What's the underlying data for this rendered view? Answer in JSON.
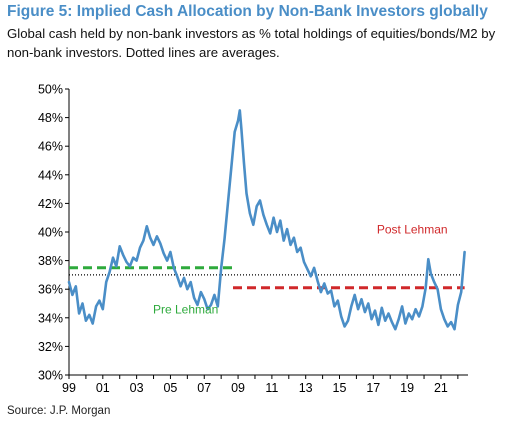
{
  "title": "Figure 5: Implied Cash Allocation by Non-Bank Investors globally",
  "subtitle": "Global cash held by non-bank investors as % total holdings of equities/bonds/M2 by non-bank investors. Dotted lines are averages.",
  "source": "Source: J.P. Morgan",
  "colors": {
    "series": "#4a8ec7",
    "pre_avg": "#2eaa3c",
    "post_avg": "#d0282a",
    "overall_avg": "#000000",
    "title": "#4a8ec7"
  },
  "chart_data": {
    "type": "line",
    "title": "Figure 5: Implied Cash Allocation by Non-Bank Investors globally",
    "xlabel": "",
    "ylabel": "",
    "xlim": [
      1999.0,
      2022.6
    ],
    "ylim": [
      30,
      50
    ],
    "y_ticks": [
      "30%",
      "32%",
      "34%",
      "36%",
      "38%",
      "40%",
      "42%",
      "44%",
      "46%",
      "48%",
      "50%"
    ],
    "x_ticks": [
      "99",
      "01",
      "03",
      "05",
      "07",
      "09",
      "11",
      "13",
      "15",
      "17",
      "19",
      "21"
    ],
    "grid": false,
    "series": [
      {
        "x": [
          1999.0,
          1999.2,
          1999.4,
          1999.6,
          1999.8,
          2000.0,
          2000.2,
          2000.4,
          2000.6,
          2000.8,
          2001.0,
          2001.2,
          2001.4,
          2001.6,
          2001.8,
          2002.0,
          2002.2,
          2002.4,
          2002.6,
          2002.8,
          2003.0,
          2003.2,
          2003.4,
          2003.6,
          2003.8,
          2004.0,
          2004.2,
          2004.4,
          2004.6,
          2004.8,
          2005.0,
          2005.2,
          2005.4,
          2005.6,
          2005.8,
          2006.0,
          2006.2,
          2006.4,
          2006.6,
          2006.8,
          2007.0,
          2007.2,
          2007.4,
          2007.6,
          2007.8,
          2008.0,
          2008.2,
          2008.4,
          2008.6,
          2008.8,
          2009.0,
          2009.1,
          2009.2,
          2009.35,
          2009.5,
          2009.7,
          2009.9,
          2010.1,
          2010.3,
          2010.5,
          2010.7,
          2010.9,
          2011.1,
          2011.3,
          2011.5,
          2011.7,
          2011.9,
          2012.1,
          2012.3,
          2012.5,
          2012.7,
          2012.9,
          2013.1,
          2013.3,
          2013.5,
          2013.7,
          2013.9,
          2014.1,
          2014.3,
          2014.5,
          2014.7,
          2014.9,
          2015.1,
          2015.3,
          2015.5,
          2015.7,
          2015.9,
          2016.1,
          2016.3,
          2016.5,
          2016.7,
          2016.9,
          2017.1,
          2017.3,
          2017.5,
          2017.7,
          2017.9,
          2018.1,
          2018.3,
          2018.5,
          2018.7,
          2018.9,
          2019.1,
          2019.3,
          2019.5,
          2019.7,
          2019.9,
          2020.1,
          2020.25,
          2020.4,
          2020.6,
          2020.8,
          2021.0,
          2021.2,
          2021.4,
          2021.6,
          2021.8,
          2022.0,
          2022.2,
          2022.4
        ],
        "y": [
          36.5,
          35.6,
          36.2,
          34.3,
          35.0,
          33.8,
          34.2,
          33.6,
          34.8,
          35.2,
          34.6,
          36.5,
          37.2,
          38.2,
          37.6,
          39.0,
          38.4,
          37.9,
          37.6,
          38.2,
          38.0,
          38.9,
          39.4,
          40.4,
          39.6,
          39.1,
          39.7,
          39.2,
          38.5,
          38.0,
          38.6,
          37.5,
          36.9,
          36.2,
          36.8,
          36.0,
          36.5,
          35.4,
          34.9,
          35.8,
          35.3,
          34.6,
          34.9,
          35.6,
          34.8,
          37.5,
          39.5,
          42.0,
          44.5,
          47.0,
          47.8,
          48.5,
          47.2,
          44.8,
          42.7,
          41.3,
          40.5,
          41.8,
          42.2,
          41.2,
          40.5,
          39.9,
          41.0,
          40.0,
          40.8,
          39.4,
          40.2,
          39.1,
          39.6,
          38.6,
          38.9,
          37.9,
          37.4,
          36.9,
          37.5,
          36.6,
          35.8,
          36.4,
          35.7,
          35.9,
          34.8,
          35.2,
          34.1,
          33.4,
          33.8,
          34.8,
          35.6,
          34.6,
          35.3,
          34.4,
          35.0,
          33.9,
          34.5,
          33.5,
          34.7,
          33.8,
          34.3,
          33.7,
          33.2,
          33.9,
          34.8,
          33.6,
          34.3,
          33.9,
          34.6,
          34.1,
          34.8,
          36.1,
          38.1,
          37.1,
          36.5,
          36.0,
          34.6,
          33.9,
          33.4,
          33.7,
          33.2,
          34.9,
          35.8,
          38.6
        ]
      }
    ],
    "averages": [
      {
        "label": "Pre Lehman",
        "y": 37.5,
        "x_start": 1999.0,
        "x_end": 2008.7,
        "style": "dashed",
        "color": "#2eaa3c"
      },
      {
        "label": "Post Lehman",
        "y": 36.1,
        "x_start": 2008.7,
        "x_end": 2022.4,
        "style": "dashed",
        "color": "#d0282a"
      },
      {
        "label": "",
        "y": 37.0,
        "x_start": 1999.0,
        "x_end": 2022.4,
        "style": "dotted",
        "color": "#000000"
      }
    ],
    "annotations": [
      {
        "text": "Pre Lehman",
        "color": "#2eaa3c",
        "x": 2005.9,
        "y": 34.3
      },
      {
        "text": "Post Lehman",
        "color": "#d0282a",
        "x": 2019.3,
        "y": 39.9
      }
    ]
  }
}
